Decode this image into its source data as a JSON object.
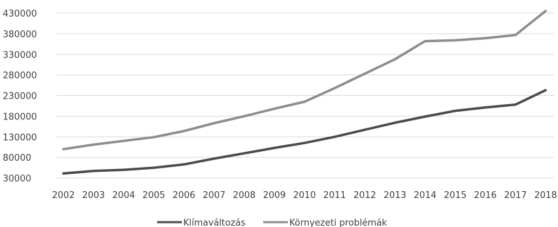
{
  "chart_data": {
    "type": "line",
    "title": "",
    "xlabel": "",
    "ylabel": "",
    "categories": [
      "2002",
      "2003",
      "2004",
      "2005",
      "2006",
      "2007",
      "2008",
      "2009",
      "2010",
      "2011",
      "2012",
      "2013",
      "2014",
      "2015",
      "2016",
      "2017",
      "2018"
    ],
    "yticks": [
      "30000",
      "80000",
      "130000",
      "180000",
      "230000",
      "280000",
      "330000",
      "380000",
      "430000"
    ],
    "ylim": [
      30000,
      430000
    ],
    "grid": true,
    "legend_position": "bottom",
    "series": [
      {
        "name": "Klímaváltozás",
        "color": "#4a4a4a",
        "values": [
          41000,
          47000,
          50000,
          55000,
          63000,
          77000,
          90000,
          103000,
          115000,
          130000,
          147000,
          164000,
          179000,
          193000,
          201000,
          208000,
          243000
        ]
      },
      {
        "name": "Környezeti problémák",
        "color": "#8c8c8c",
        "values": [
          100000,
          111000,
          120000,
          129000,
          144000,
          163000,
          180000,
          198000,
          215000,
          248000,
          283000,
          318000,
          362000,
          364000,
          369000,
          377000,
          435000
        ]
      }
    ]
  }
}
